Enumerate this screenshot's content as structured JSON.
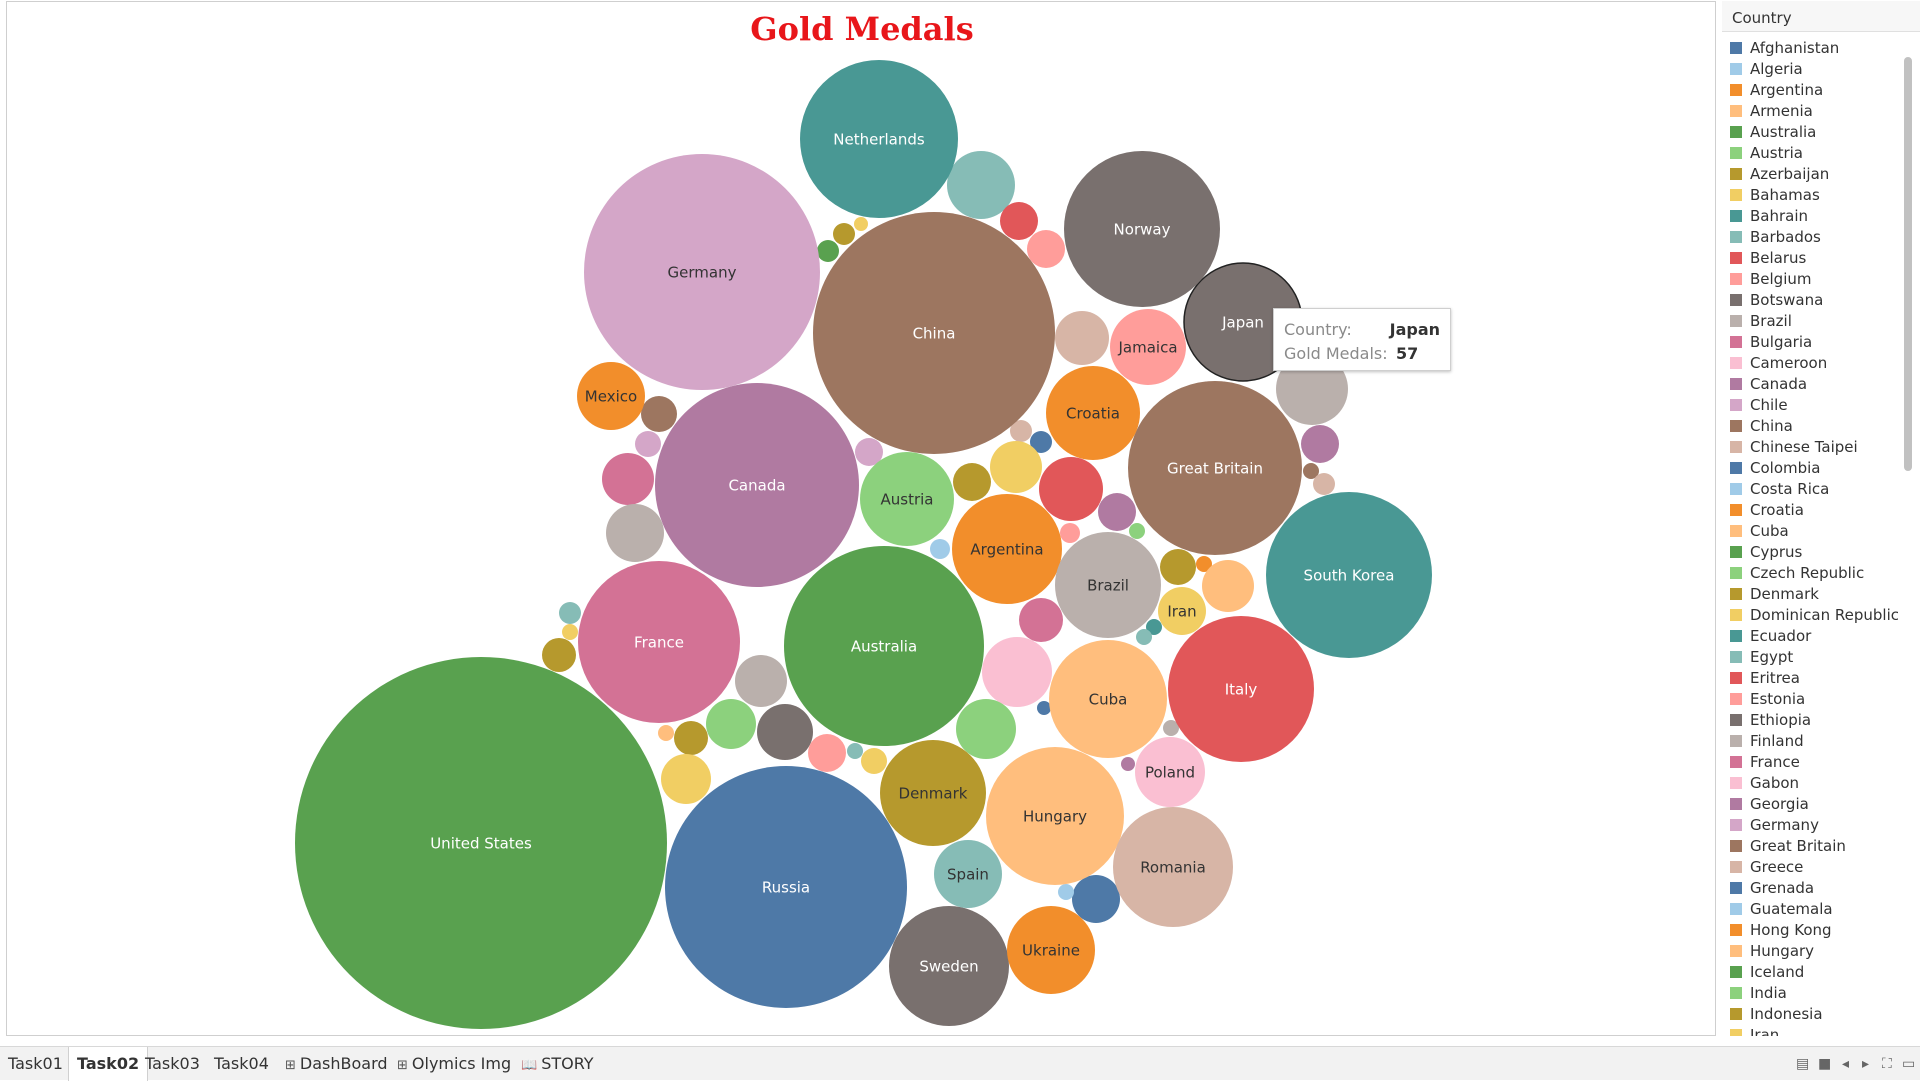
{
  "chart_data": {
    "type": "bubble",
    "title": "Gold Medals",
    "title_color": "#e8161a",
    "legend_title": "Country",
    "legend_placement": "right",
    "measure": "Gold Medals",
    "dimension": "Country",
    "labeled_values": [
      {
        "country": "United States",
        "value": 164
      },
      {
        "country": "Russia",
        "value": 69
      },
      {
        "country": "China",
        "value": 68
      },
      {
        "country": "Germany",
        "value": 59
      },
      {
        "country": "Japan",
        "value": 57
      },
      {
        "country": "Canada",
        "value": 47
      },
      {
        "country": "Australia",
        "value": 46
      },
      {
        "country": "Great Britain",
        "value": 35
      },
      {
        "country": "South Korea",
        "value": 31
      },
      {
        "country": "Norway",
        "value": 28
      },
      {
        "country": "France",
        "value": 30
      },
      {
        "country": "Italy",
        "value": 24
      },
      {
        "country": "Netherlands",
        "value": 28
      },
      {
        "country": "Hungary",
        "value": 22
      },
      {
        "country": "Romania",
        "value": 16
      },
      {
        "country": "Sweden",
        "value": 16
      },
      {
        "country": "Cuba",
        "value": 15
      },
      {
        "country": "Denmark",
        "value": 12
      },
      {
        "country": "Argentina",
        "value": 13
      },
      {
        "country": "Brazil",
        "value": 13
      },
      {
        "country": "Austria",
        "value": 9
      },
      {
        "country": "Croatia",
        "value": 9
      },
      {
        "country": "Jamaica",
        "value": 7
      },
      {
        "country": "Poland",
        "value": 6
      },
      {
        "country": "Ukraine",
        "value": 8
      },
      {
        "country": "Spain",
        "value": 5
      },
      {
        "country": "Mexico",
        "value": 5
      },
      {
        "country": "Iran",
        "value": 3
      }
    ]
  },
  "legend": [
    {
      "label": "Afghanistan",
      "color": "#4e79a7"
    },
    {
      "label": "Algeria",
      "color": "#a0cbe8"
    },
    {
      "label": "Argentina",
      "color": "#f28e2b"
    },
    {
      "label": "Armenia",
      "color": "#ffbe7d"
    },
    {
      "label": "Australia",
      "color": "#59a14f"
    },
    {
      "label": "Austria",
      "color": "#8cd17d"
    },
    {
      "label": "Azerbaijan",
      "color": "#b6992d"
    },
    {
      "label": "Bahamas",
      "color": "#f1ce63"
    },
    {
      "label": "Bahrain",
      "color": "#499894"
    },
    {
      "label": "Barbados",
      "color": "#86bcb6"
    },
    {
      "label": "Belarus",
      "color": "#e15759"
    },
    {
      "label": "Belgium",
      "color": "#ff9d9a"
    },
    {
      "label": "Botswana",
      "color": "#79706e"
    },
    {
      "label": "Brazil",
      "color": "#bab0ac"
    },
    {
      "label": "Bulgaria",
      "color": "#d37295"
    },
    {
      "label": "Cameroon",
      "color": "#fabfd2"
    },
    {
      "label": "Canada",
      "color": "#b07aa1"
    },
    {
      "label": "Chile",
      "color": "#d4a6c8"
    },
    {
      "label": "China",
      "color": "#9d7660"
    },
    {
      "label": "Chinese Taipei",
      "color": "#d7b5a6"
    },
    {
      "label": "Colombia",
      "color": "#4e79a7"
    },
    {
      "label": "Costa Rica",
      "color": "#a0cbe8"
    },
    {
      "label": "Croatia",
      "color": "#f28e2b"
    },
    {
      "label": "Cuba",
      "color": "#ffbe7d"
    },
    {
      "label": "Cyprus",
      "color": "#59a14f"
    },
    {
      "label": "Czech Republic",
      "color": "#8cd17d"
    },
    {
      "label": "Denmark",
      "color": "#b6992d"
    },
    {
      "label": "Dominican Republic",
      "color": "#f1ce63"
    },
    {
      "label": "Ecuador",
      "color": "#499894"
    },
    {
      "label": "Egypt",
      "color": "#86bcb6"
    },
    {
      "label": "Eritrea",
      "color": "#e15759"
    },
    {
      "label": "Estonia",
      "color": "#ff9d9a"
    },
    {
      "label": "Ethiopia",
      "color": "#79706e"
    },
    {
      "label": "Finland",
      "color": "#bab0ac"
    },
    {
      "label": "France",
      "color": "#d37295"
    },
    {
      "label": "Gabon",
      "color": "#fabfd2"
    },
    {
      "label": "Georgia",
      "color": "#b07aa1"
    },
    {
      "label": "Germany",
      "color": "#d4a6c8"
    },
    {
      "label": "Great Britain",
      "color": "#9d7660"
    },
    {
      "label": "Greece",
      "color": "#d7b5a6"
    },
    {
      "label": "Grenada",
      "color": "#4e79a7"
    },
    {
      "label": "Guatemala",
      "color": "#a0cbe8"
    },
    {
      "label": "Hong Kong",
      "color": "#f28e2b"
    },
    {
      "label": "Hungary",
      "color": "#ffbe7d"
    },
    {
      "label": "Iceland",
      "color": "#59a14f"
    },
    {
      "label": "India",
      "color": "#8cd17d"
    },
    {
      "label": "Indonesia",
      "color": "#b6992d"
    },
    {
      "label": "Iran",
      "color": "#f1ce63"
    }
  ],
  "tooltip": {
    "country_key": "Country:",
    "country_value": "Japan",
    "medals_key": "Gold Medals:",
    "medals_value": "57"
  },
  "tabs": [
    {
      "label": "Task01",
      "icon": ""
    },
    {
      "label": "Task02",
      "icon": "",
      "active": true
    },
    {
      "label": "Task03",
      "icon": ""
    },
    {
      "label": "Task04",
      "icon": ""
    },
    {
      "label": "DashBoard",
      "icon": "⊞"
    },
    {
      "label": "Olymics Img",
      "icon": "⊞"
    },
    {
      "label": "STORY",
      "icon": "📖"
    }
  ]
}
